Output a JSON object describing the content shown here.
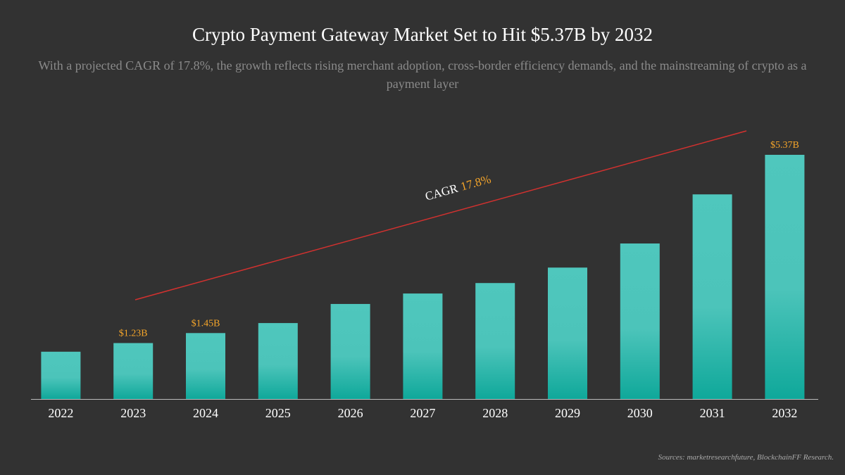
{
  "chart_data": {
    "type": "bar",
    "title": "Crypto Payment Gateway Market Set to Hit $5.37B by 2032",
    "subtitle": "With a projected CAGR of 17.8%, the growth reflects rising merchant adoption, cross-border efficiency demands, and the mainstreaming of crypto as a payment layer",
    "categories": [
      "2022",
      "2023",
      "2024",
      "2025",
      "2026",
      "2027",
      "2028",
      "2029",
      "2030",
      "2031",
      "2032"
    ],
    "values": [
      1.04,
      1.23,
      1.45,
      1.67,
      2.09,
      2.32,
      2.55,
      2.89,
      3.42,
      4.5,
      5.37
    ],
    "value_labels": [
      null,
      "$1.23B",
      "$1.45B",
      null,
      null,
      null,
      null,
      null,
      null,
      null,
      "$5.37B"
    ],
    "color": "#4fc7bd",
    "annotation": {
      "label": "CAGR",
      "value": "17.8%"
    },
    "source": "Sources: marketresearchfuture, BlockchainFF Research."
  }
}
